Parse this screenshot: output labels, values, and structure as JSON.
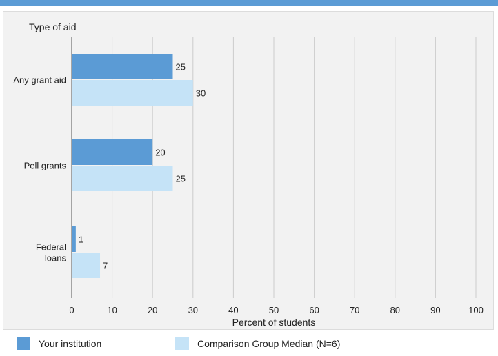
{
  "colors": {
    "top_bar": "#5b9bd5",
    "series_1": "#5b9bd5",
    "series_2": "#c5e3f7",
    "grid": "#cccccc",
    "axis": "#555555"
  },
  "chart_data": {
    "type": "bar",
    "orientation": "horizontal",
    "title": "Type of aid",
    "xlabel": "Percent of students",
    "xlim": [
      0,
      100
    ],
    "xticks": [
      0,
      10,
      20,
      30,
      40,
      50,
      60,
      70,
      80,
      90,
      100
    ],
    "grid": true,
    "legend_position": "bottom",
    "categories": [
      [
        "Any grant aid"
      ],
      [
        "Pell grants"
      ],
      [
        "Federal",
        "loans"
      ]
    ],
    "series": [
      {
        "name": "Your institution",
        "values": [
          25,
          20,
          1
        ]
      },
      {
        "name": "Comparison Group Median (N=6)",
        "values": [
          30,
          25,
          7
        ]
      }
    ]
  }
}
